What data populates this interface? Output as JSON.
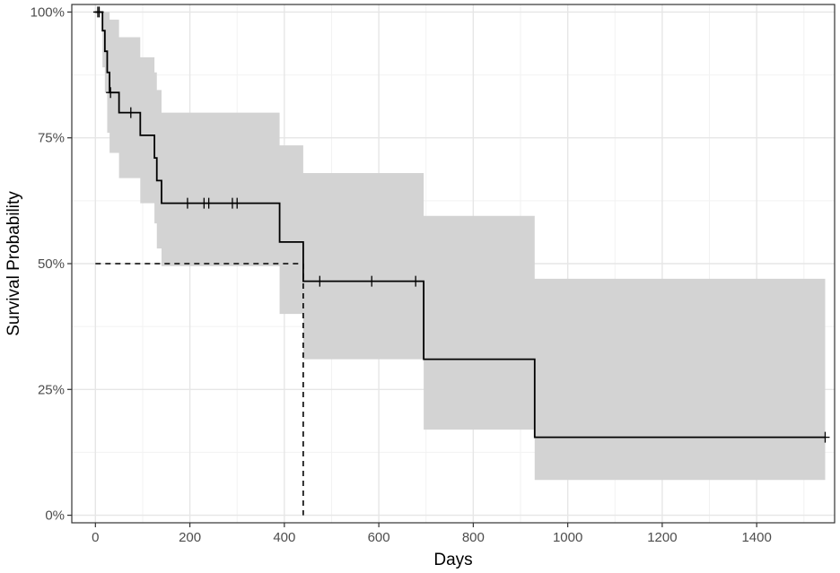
{
  "chart_data": {
    "type": "line",
    "subtype": "kaplan-meier-survival",
    "title": "",
    "xlabel": "Days",
    "ylabel": "Survival Probability",
    "xlim": [
      -50,
      1565
    ],
    "ylim": [
      -0.015,
      1.015
    ],
    "x_ticks": [
      0,
      200,
      400,
      600,
      800,
      1000,
      1200,
      1400
    ],
    "x_tick_labels": [
      "0",
      "200",
      "400",
      "600",
      "800",
      "1000",
      "1200",
      "1400"
    ],
    "y_ticks": [
      0,
      0.25,
      0.5,
      0.75,
      1.0
    ],
    "y_tick_labels": [
      "0%",
      "25%",
      "50%",
      "75%",
      "100%"
    ],
    "grid": true,
    "legend": "none",
    "colors": {
      "line": "#000000",
      "ci_band": "#d3d3d3",
      "grid_major": "#e6e6e6",
      "grid_minor": "#f2f2f2",
      "panel_border": "#333333"
    },
    "series": [
      {
        "steps": [
          {
            "x": 0,
            "y": 1.0,
            "lower": 1.0,
            "upper": 1.0
          },
          {
            "x": 15,
            "y": 0.963,
            "lower": 0.89,
            "upper": 1.0
          },
          {
            "x": 20,
            "y": 0.922,
            "lower": 0.84,
            "upper": 1.0
          },
          {
            "x": 25,
            "y": 0.88,
            "lower": 0.76,
            "upper": 1.0
          },
          {
            "x": 30,
            "y": 0.84,
            "lower": 0.72,
            "upper": 0.985
          },
          {
            "x": 50,
            "y": 0.8,
            "lower": 0.67,
            "upper": 0.95
          },
          {
            "x": 95,
            "y": 0.755,
            "lower": 0.62,
            "upper": 0.91
          },
          {
            "x": 125,
            "y": 0.71,
            "lower": 0.58,
            "upper": 0.88
          },
          {
            "x": 130,
            "y": 0.665,
            "lower": 0.53,
            "upper": 0.845
          },
          {
            "x": 140,
            "y": 0.62,
            "lower": 0.495,
            "upper": 0.8
          },
          {
            "x": 390,
            "y": 0.543,
            "lower": 0.4,
            "upper": 0.735
          },
          {
            "x": 440,
            "y": 0.465,
            "lower": 0.31,
            "upper": 0.68
          },
          {
            "x": 695,
            "y": 0.31,
            "lower": 0.17,
            "upper": 0.595
          },
          {
            "x": 930,
            "y": 0.155,
            "lower": 0.07,
            "upper": 0.47
          },
          {
            "x": 1545,
            "y": 0.155,
            "lower": 0.07,
            "upper": 0.47
          }
        ],
        "censored": [
          {
            "x": 5,
            "y": 1.0
          },
          {
            "x": 8,
            "y": 1.0
          },
          {
            "x": 32,
            "y": 0.84
          },
          {
            "x": 75,
            "y": 0.8
          },
          {
            "x": 195,
            "y": 0.62
          },
          {
            "x": 230,
            "y": 0.62
          },
          {
            "x": 240,
            "y": 0.62
          },
          {
            "x": 290,
            "y": 0.62
          },
          {
            "x": 300,
            "y": 0.62
          },
          {
            "x": 475,
            "y": 0.465
          },
          {
            "x": 585,
            "y": 0.465
          },
          {
            "x": 678,
            "y": 0.465
          },
          {
            "x": 1545,
            "y": 0.155
          }
        ]
      }
    ],
    "median": {
      "x": 440,
      "y": 0.5
    }
  }
}
